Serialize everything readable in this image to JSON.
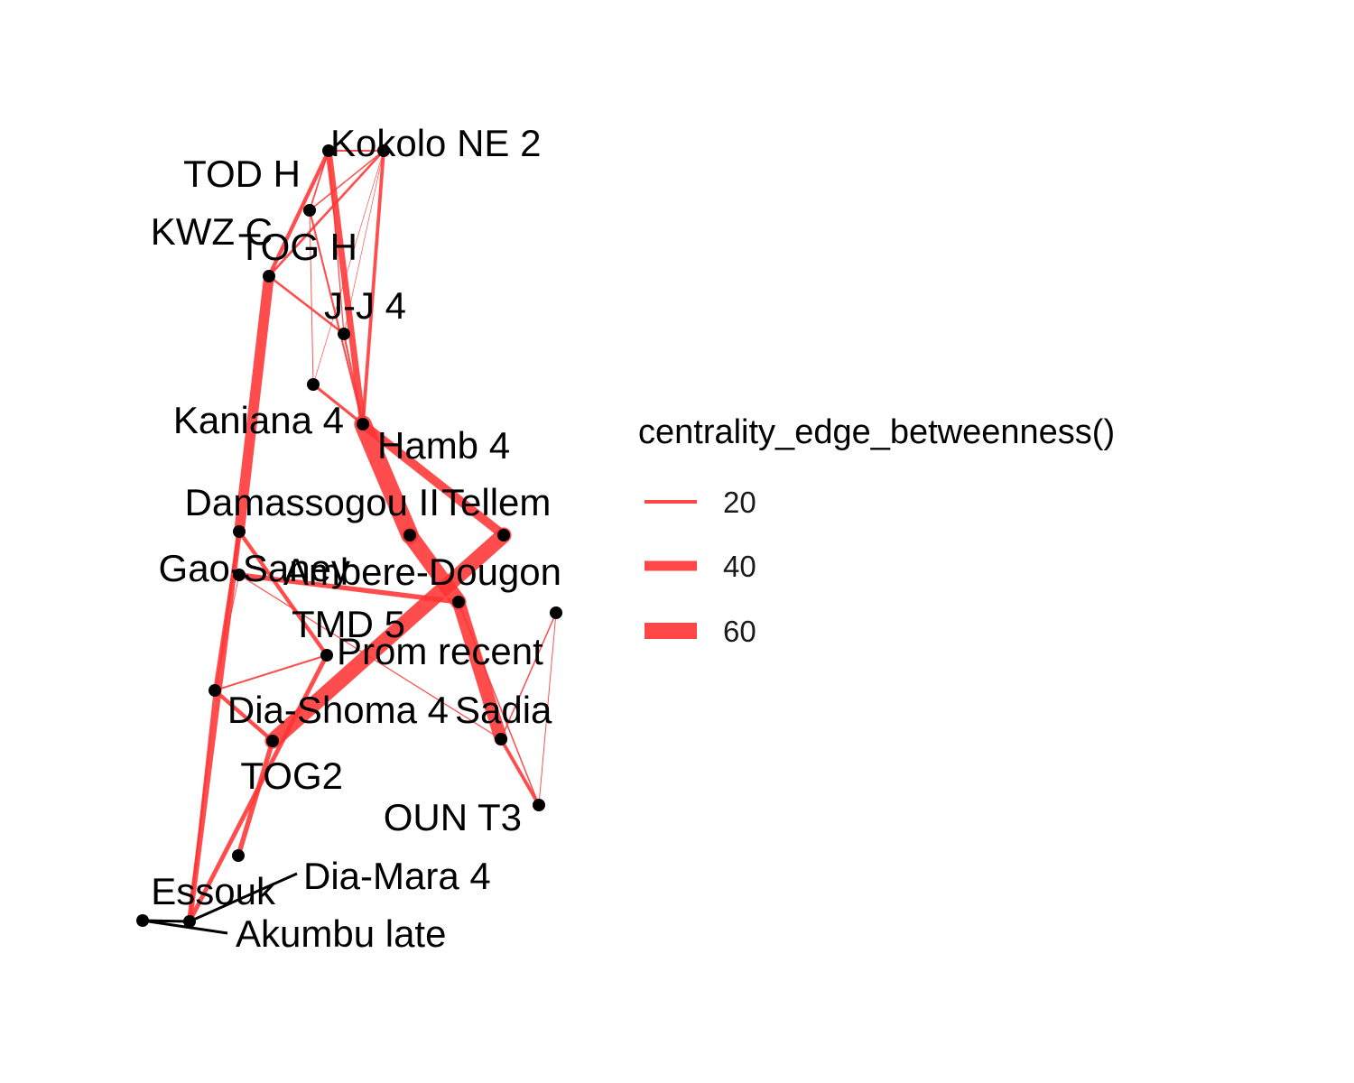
{
  "chart_data": {
    "type": "network",
    "legend": {
      "title": "centrality_edge_betweenness()",
      "placement": "right",
      "entries": [
        {
          "label": "20",
          "value": 20
        },
        {
          "label": "40",
          "value": 40
        },
        {
          "label": "60",
          "value": 60
        }
      ]
    },
    "colors": {
      "edge": "#ff3333",
      "node": "#000000",
      "label_connector": "#000000"
    },
    "labels": [
      "Kokolo NE 2",
      "TOD H",
      "KWZ C",
      "TOG H",
      "J-J 4",
      "Kaniana 4",
      "Hamb 4",
      "Damassogou II",
      "Tellem",
      "Gao-Saney",
      "Ambere-Dougon",
      "TMD 5",
      "Prom recent",
      "Dia-Shoma 4",
      "Sadia",
      "TOG2",
      "OUN T3",
      "Dia-Mara 4",
      "Essouk",
      "Akumbu late"
    ],
    "edges": [
      {
        "from": 0,
        "to": 1,
        "betweenness": 6
      },
      {
        "from": 0,
        "to": 2,
        "betweenness": 14
      },
      {
        "from": 0,
        "to": 3,
        "betweenness": 5
      },
      {
        "from": 0,
        "to": 4,
        "betweenness": 3
      },
      {
        "from": 0,
        "to": 6,
        "betweenness": 24
      },
      {
        "from": 1,
        "to": 3,
        "betweenness": 4
      },
      {
        "from": 1,
        "to": 2,
        "betweenness": 8
      },
      {
        "from": 1,
        "to": 6,
        "betweenness": 12
      },
      {
        "from": 1,
        "to": 4,
        "betweenness": 1
      },
      {
        "from": 1,
        "to": 5,
        "betweenness": 1
      },
      {
        "from": 2,
        "to": 4,
        "betweenness": 8
      },
      {
        "from": 2,
        "to": 7,
        "betweenness": 40
      },
      {
        "from": 3,
        "to": 6,
        "betweenness": 6
      },
      {
        "from": 3,
        "to": 5,
        "betweenness": 2
      },
      {
        "from": 4,
        "to": 6,
        "betweenness": 6
      },
      {
        "from": 5,
        "to": 6,
        "betweenness": 10
      },
      {
        "from": 6,
        "to": 8,
        "betweenness": 68
      },
      {
        "from": 6,
        "to": 12,
        "betweenness": 34
      },
      {
        "from": 8,
        "to": 10,
        "betweenness": 60
      },
      {
        "from": 10,
        "to": 9,
        "betweenness": 18
      },
      {
        "from": 10,
        "to": 14,
        "betweenness": 50
      },
      {
        "from": 10,
        "to": 16,
        "betweenness": 4
      },
      {
        "from": 9,
        "to": 14,
        "betweenness": 3
      },
      {
        "from": 9,
        "to": 15,
        "betweenness": 2
      },
      {
        "from": 14,
        "to": 16,
        "betweenness": 12
      },
      {
        "from": 14,
        "to": 17,
        "betweenness": 4
      },
      {
        "from": 16,
        "to": 17,
        "betweenness": 2
      },
      {
        "from": 12,
        "to": 13,
        "betweenness": 60
      },
      {
        "from": 13,
        "to": 15,
        "betweenness": 14
      },
      {
        "from": 13,
        "to": 18,
        "betweenness": 18
      },
      {
        "from": 7,
        "to": 11,
        "betweenness": 14
      },
      {
        "from": 7,
        "to": 15,
        "betweenness": 12
      },
      {
        "from": 7,
        "to": 19,
        "betweenness": 20
      },
      {
        "from": 11,
        "to": 15,
        "betweenness": 6
      },
      {
        "from": 11,
        "to": 19,
        "betweenness": 16
      },
      {
        "from": 15,
        "to": 19,
        "betweenness": 8
      }
    ]
  }
}
